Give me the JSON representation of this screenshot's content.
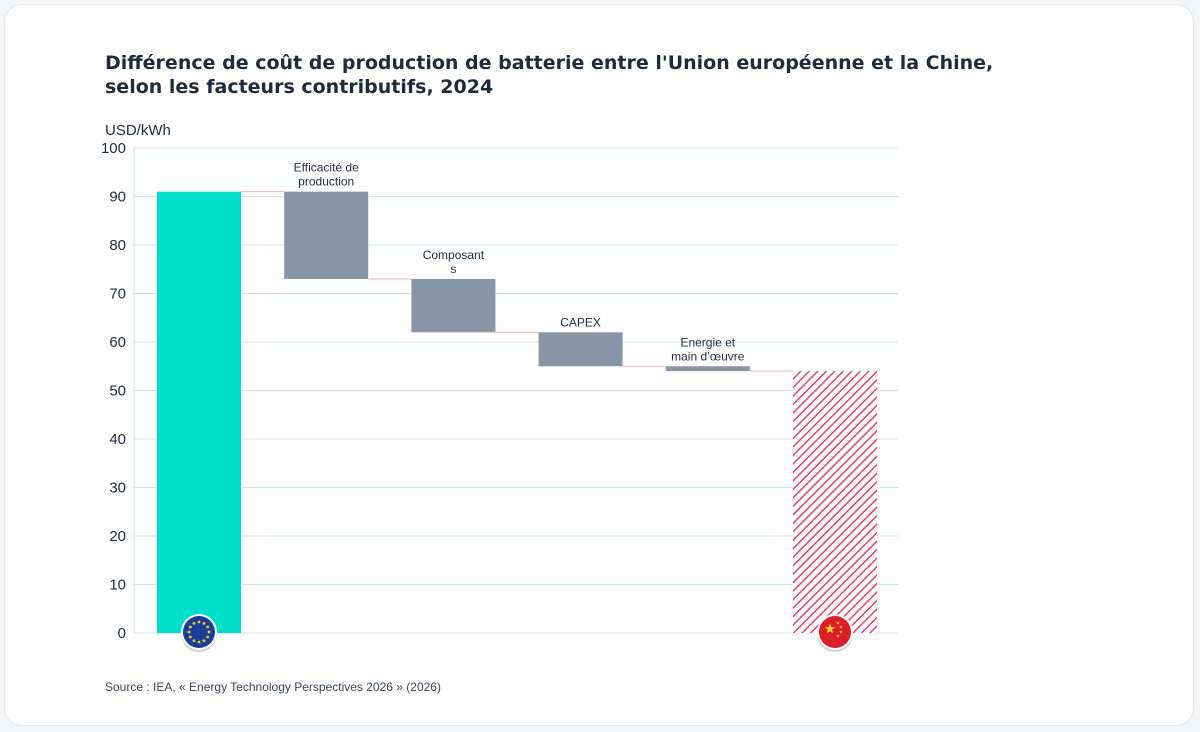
{
  "title_lines": [
    "Différence de coût de production de batterie entre l'Union européenne et la Chine,",
    "selon les facteurs contributifs, 2024"
  ],
  "source": "Source : IEA, « Energy Technology Perspectives 2026 » (2026)",
  "colors": {
    "eu": "#00dfc9",
    "factor": "#8796a7",
    "china": "#e0436a",
    "grid": "#cfe3ef",
    "connector": "#e7b4c0"
  },
  "chart_data": {
    "type": "waterfall",
    "ylabel": "USD/kWh",
    "ylim": [
      0,
      100
    ],
    "yticks": [
      0,
      10,
      20,
      30,
      40,
      50,
      60,
      70,
      80,
      90,
      100
    ],
    "bars": [
      {
        "label_lines": [],
        "kind": "total",
        "start": 0,
        "end": 91,
        "icon": "eu-flag-icon"
      },
      {
        "label_lines": [
          "Efficacité de",
          "production"
        ],
        "kind": "delta",
        "start": 91,
        "end": 73
      },
      {
        "label_lines": [
          "Composant",
          "s"
        ],
        "kind": "delta",
        "start": 73,
        "end": 62
      },
      {
        "label_lines": [
          "CAPEX"
        ],
        "kind": "delta",
        "start": 62,
        "end": 55
      },
      {
        "label_lines": [
          "Energie et",
          "main d’œuvre"
        ],
        "kind": "delta",
        "start": 55,
        "end": 54
      },
      {
        "label_lines": [],
        "kind": "total-hatched",
        "start": 0,
        "end": 54,
        "icon": "china-flag-icon"
      }
    ]
  }
}
